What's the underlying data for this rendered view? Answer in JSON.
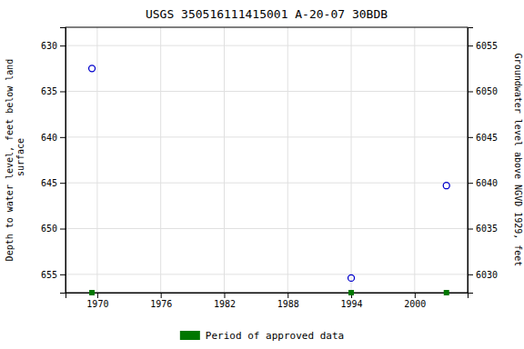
{
  "chart_data": {
    "type": "scatter",
    "title": "USGS 350516111415001 A-20-07 30BDB",
    "ylabel": "Depth to water level, feet below land\n surface",
    "y2label": "Groundwater level above NGVD 1929, feet",
    "series": [
      {
        "x": [
          1969.5,
          1994.0,
          2003.0
        ],
        "values": [
          632.5,
          655.4,
          645.3
        ],
        "color": "#0000cc",
        "marker": "circle"
      },
      {
        "name": "Period of approved data",
        "x": [
          1969.5,
          1994.0,
          2003.0
        ],
        "color": "#007700",
        "marker": "square"
      }
    ],
    "xlim": [
      1967,
      2005
    ],
    "xticks": [
      1970,
      1976,
      1982,
      1988,
      1994,
      2000
    ],
    "ylim": [
      657,
      628
    ],
    "yticks": [
      630,
      635,
      640,
      645,
      650,
      655
    ],
    "y2lim": [
      6028,
      6057
    ],
    "y2ticks": [
      6055,
      6050,
      6045,
      6040,
      6035,
      6030
    ],
    "grid": true,
    "legend": "bottom"
  }
}
